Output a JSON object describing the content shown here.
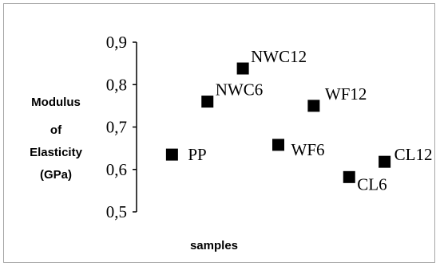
{
  "chart_data": {
    "type": "scatter",
    "title": "",
    "xlabel": "samples",
    "ylabel_lines": [
      "Modulus",
      "of",
      "Elasticity",
      "(GPa)"
    ],
    "ylim": [
      0.5,
      0.9
    ],
    "yticks": [
      "0,5",
      "0,6",
      "0,7",
      "0,8",
      "0,9"
    ],
    "ytick_values": [
      0.5,
      0.6,
      0.7,
      0.8,
      0.9
    ],
    "xlim": [
      0,
      8
    ],
    "grid": false,
    "legend": "none",
    "marker": "square",
    "marker_color": "#000000",
    "points": [
      {
        "label": "PP",
        "x": 1,
        "y": 0.635
      },
      {
        "label": "NWC6",
        "x": 2,
        "y": 0.76
      },
      {
        "label": "NWC12",
        "x": 3,
        "y": 0.838
      },
      {
        "label": "WF6",
        "x": 4,
        "y": 0.658
      },
      {
        "label": "WF12",
        "x": 5,
        "y": 0.75
      },
      {
        "label": "CL6",
        "x": 6,
        "y": 0.582
      },
      {
        "label": "CL12",
        "x": 7,
        "y": 0.618
      }
    ]
  }
}
